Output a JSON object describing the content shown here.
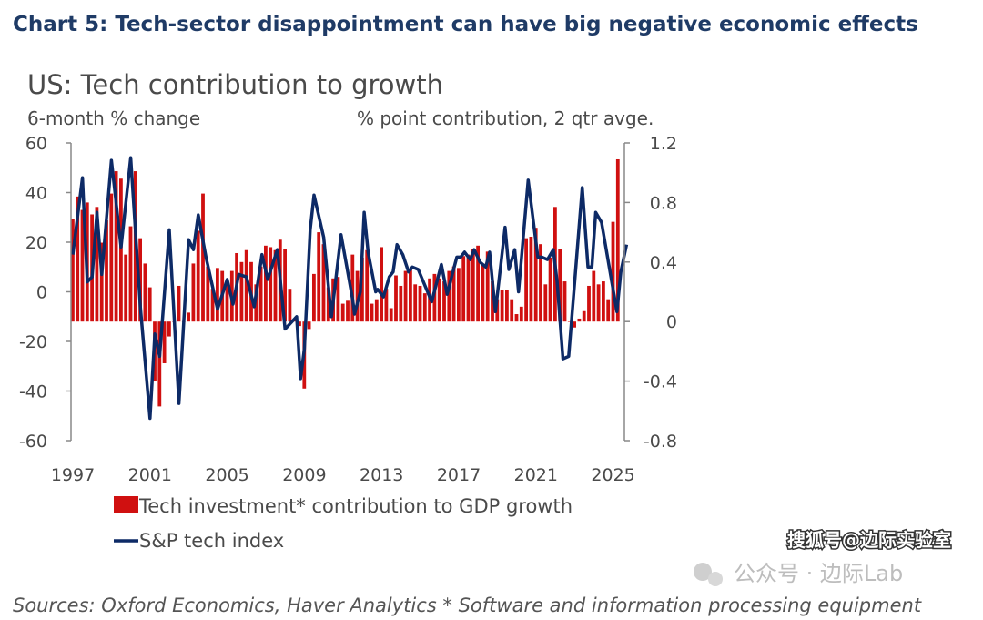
{
  "chart_data": {
    "type": "bar+line",
    "title": "Chart 5: Tech-sector disappointment can have big negative economic effects",
    "subtitle": "US: Tech contribution to growth",
    "ylabel_left": "6-month % change",
    "ylabel_right": "% point contribution, 2 qtr avge.",
    "ylim_left": [
      -60,
      60
    ],
    "ylim_right": [
      -0.8,
      1.2
    ],
    "yticks_left": [
      "60",
      "40",
      "20",
      "0",
      "-20",
      "-40",
      "-60"
    ],
    "yticks_right": [
      "1.2",
      "0.8",
      "0.4",
      "0",
      "-0.4",
      "-0.8"
    ],
    "xticks": [
      "1997",
      "2001",
      "2005",
      "2009",
      "2013",
      "2017",
      "2021",
      "2025"
    ],
    "xlim": [
      1997,
      2025.8
    ],
    "grid": false,
    "legend_placement": "bottom-left",
    "colors": {
      "bars": "#d01010",
      "line": "#0d2a66",
      "title": "#1f3b66"
    },
    "series": [
      {
        "name": "Tech investment* contribution to GDP growth",
        "type": "bar",
        "axis": "right",
        "frequency": "quarterly",
        "x_start": "1997Q1",
        "values": [
          0.69,
          0.84,
          0.75,
          0.8,
          0.72,
          0.77,
          0.53,
          0.68,
          0.86,
          1.01,
          0.96,
          0.45,
          0.64,
          1.01,
          0.56,
          0.39,
          0.23,
          -0.4,
          -0.57,
          -0.28,
          -0.1,
          0.0,
          0.24,
          0.0,
          0.06,
          0.39,
          0.61,
          0.86,
          0.37,
          0.22,
          0.36,
          0.34,
          0.27,
          0.34,
          0.46,
          0.4,
          0.48,
          0.4,
          0.25,
          0.37,
          0.51,
          0.5,
          0.48,
          0.55,
          0.49,
          0.22,
          0.02,
          -0.03,
          -0.45,
          -0.05,
          0.32,
          0.6,
          0.52,
          0.23,
          0.29,
          0.3,
          0.12,
          0.14,
          0.45,
          0.34,
          0.43,
          0.48,
          0.12,
          0.15,
          0.5,
          0.22,
          0.09,
          0.31,
          0.24,
          0.34,
          0.35,
          0.25,
          0.24,
          0.19,
          0.29,
          0.32,
          0.29,
          0.27,
          0.34,
          0.37,
          0.36,
          0.44,
          0.45,
          0.49,
          0.51,
          0.39,
          0.47,
          0.27,
          0.15,
          0.21,
          0.21,
          0.15,
          0.05,
          0.1,
          0.56,
          0.57,
          0.63,
          0.52,
          0.25,
          0.43,
          0.77,
          0.49,
          0.27,
          0.0,
          -0.04,
          0.02,
          0.07,
          0.24,
          0.34,
          0.25,
          0.27,
          0.15,
          0.67,
          1.09
        ]
      },
      {
        "name": "S&P tech index",
        "type": "line",
        "axis": "left",
        "points": [
          [
            1997.0,
            15
          ],
          [
            1997.5,
            46
          ],
          [
            1997.75,
            4
          ],
          [
            1998.0,
            6
          ],
          [
            1998.25,
            32
          ],
          [
            1998.5,
            7
          ],
          [
            1999.0,
            53
          ],
          [
            1999.5,
            18
          ],
          [
            2000.0,
            54
          ],
          [
            2000.5,
            -6
          ],
          [
            2001.0,
            -51
          ],
          [
            2001.25,
            -17
          ],
          [
            2001.5,
            -26
          ],
          [
            2002.0,
            25
          ],
          [
            2002.5,
            -45
          ],
          [
            2003.0,
            21
          ],
          [
            2003.25,
            17
          ],
          [
            2003.5,
            31
          ],
          [
            2003.9,
            14
          ],
          [
            2004.5,
            -7
          ],
          [
            2005.0,
            5
          ],
          [
            2005.3,
            -5
          ],
          [
            2005.6,
            7
          ],
          [
            2006.0,
            6
          ],
          [
            2006.4,
            -6
          ],
          [
            2006.8,
            15
          ],
          [
            2007.1,
            5
          ],
          [
            2007.6,
            17
          ],
          [
            2008.0,
            -15
          ],
          [
            2008.6,
            -10
          ],
          [
            2008.8,
            -35
          ],
          [
            2009.0,
            -23
          ],
          [
            2009.3,
            25
          ],
          [
            2009.5,
            39
          ],
          [
            2010.0,
            22
          ],
          [
            2010.4,
            -10
          ],
          [
            2010.9,
            23
          ],
          [
            2011.5,
            -3
          ],
          [
            2011.6,
            -9
          ],
          [
            2011.9,
            0
          ],
          [
            2012.1,
            32
          ],
          [
            2012.3,
            16
          ],
          [
            2012.7,
            0
          ],
          [
            2012.8,
            1
          ],
          [
            2013.1,
            -2
          ],
          [
            2013.4,
            6
          ],
          [
            2013.6,
            8
          ],
          [
            2013.8,
            19
          ],
          [
            2014.1,
            15
          ],
          [
            2014.4,
            8
          ],
          [
            2014.6,
            10
          ],
          [
            2014.9,
            9
          ],
          [
            2015.6,
            -4
          ],
          [
            2016.1,
            11
          ],
          [
            2016.4,
            -1
          ],
          [
            2016.7,
            8
          ],
          [
            2016.9,
            14
          ],
          [
            2017.1,
            14
          ],
          [
            2017.3,
            16
          ],
          [
            2017.6,
            13
          ],
          [
            2017.8,
            17
          ],
          [
            2018.1,
            12
          ],
          [
            2018.4,
            10
          ],
          [
            2018.6,
            16
          ],
          [
            2018.9,
            -8
          ],
          [
            2019.4,
            26
          ],
          [
            2019.6,
            9
          ],
          [
            2019.9,
            17
          ],
          [
            2020.1,
            0
          ],
          [
            2020.6,
            45
          ],
          [
            2021.1,
            14
          ],
          [
            2021.3,
            14
          ],
          [
            2021.6,
            13
          ],
          [
            2021.9,
            17
          ],
          [
            2022.1,
            4
          ],
          [
            2022.4,
            -27
          ],
          [
            2022.7,
            -26
          ],
          [
            2023.4,
            42
          ],
          [
            2023.7,
            10
          ],
          [
            2023.9,
            10
          ],
          [
            2024.1,
            32
          ],
          [
            2024.4,
            28
          ],
          [
            2025.2,
            -8
          ],
          [
            2025.4,
            8
          ],
          [
            2025.7,
            19
          ]
        ]
      }
    ],
    "source": "Sources: Oxford Economics, Haver Analytics * Software and information processing equipment"
  },
  "watermarks": [
    "公众号 · 边际Lab",
    "搜狐号@边际实验室"
  ]
}
